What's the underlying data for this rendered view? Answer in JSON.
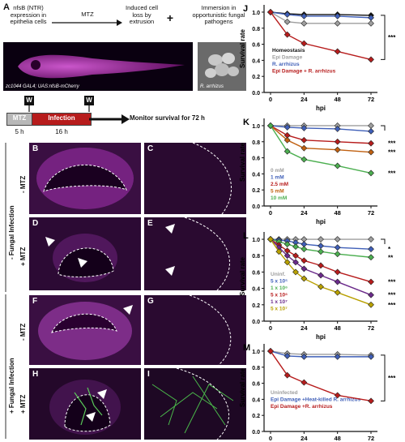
{
  "panel_a": {
    "letter": "A",
    "expression_text": "nfsB (NTR) expression in epithelia cells",
    "mtz": "MTZ",
    "induced_text": "Induced cell loss by extrusion",
    "plus": "+",
    "immersion_text": "Immersion in opportunistic fungal pathogens",
    "fish_caption": "zc1044 GAL4; UAS:nfsB-mCherry",
    "fungus_caption": "R. arrhizus",
    "timeline_w1": "W",
    "timeline_w2": "W",
    "timeline_mtz": "MTZ",
    "timeline_infection": "Infection",
    "timeline_monitor": "Monitor survival for 72 h",
    "timeline_5h": "5 h",
    "timeline_16h": "16 h"
  },
  "micro_panels": {
    "letters": [
      "B",
      "C",
      "D",
      "E",
      "F",
      "G",
      "H",
      "I"
    ],
    "group_top": "- Fungal Infection",
    "group_bottom": "+ Fungal Infection",
    "row_labels": [
      "- MTZ",
      "+ MTZ",
      "- MTZ",
      "+ MTZ"
    ]
  },
  "colors": {
    "magenta": "#cc33cc",
    "grey": "#9e9e9e",
    "blue": "#3f5fb8",
    "dark": "#111111",
    "red": "#b71c1c",
    "green": "#4caf50",
    "orange": "#c06010",
    "olive": "#b8a000"
  },
  "chart_data": [
    {
      "letter": "J",
      "type": "line",
      "xlabel": "hpi",
      "ylabel": "Survival rate",
      "x": [
        0,
        12,
        24,
        48,
        72
      ],
      "xticks": [
        0,
        24,
        48,
        72
      ],
      "yticks": [
        0,
        0.2,
        0.4,
        0.6,
        0.8,
        1.0
      ],
      "ylim": [
        0,
        1.05
      ],
      "sig": [
        "***"
      ],
      "series": [
        {
          "name": "Homeostasis",
          "color": "#111111",
          "values": [
            1.0,
            0.98,
            0.97,
            0.97,
            0.96
          ]
        },
        {
          "name": "Epi Damage",
          "color": "#9e9e9e",
          "values": [
            1.0,
            0.88,
            0.86,
            0.86,
            0.86
          ]
        },
        {
          "name": "R. arrhizus",
          "color": "#3f5fb8",
          "values": [
            1.0,
            0.97,
            0.95,
            0.95,
            0.93
          ]
        },
        {
          "name": "Epi Damage + R. arrhizus",
          "color": "#b71c1c",
          "values": [
            1.0,
            0.72,
            0.61,
            0.51,
            0.41
          ]
        }
      ]
    },
    {
      "letter": "K",
      "type": "line",
      "xlabel": "hpi",
      "ylabel": "Survival rate",
      "x": [
        0,
        12,
        24,
        48,
        72
      ],
      "xticks": [
        0,
        24,
        48,
        72
      ],
      "yticks": [
        0,
        0.2,
        0.4,
        0.6,
        0.8,
        1.0
      ],
      "ylim": [
        0,
        1.05
      ],
      "sig": [
        "***",
        "***",
        "***"
      ],
      "series": [
        {
          "name": "0 mM",
          "color": "#9e9e9e",
          "values": [
            1.0,
            1.0,
            1.0,
            1.0,
            1.0
          ]
        },
        {
          "name": "1 mM",
          "color": "#3f5fb8",
          "values": [
            1.0,
            0.98,
            0.97,
            0.96,
            0.93
          ]
        },
        {
          "name": "2.5 mM",
          "color": "#b71c1c",
          "values": [
            1.0,
            0.88,
            0.82,
            0.8,
            0.78
          ]
        },
        {
          "name": "5 mM",
          "color": "#c06010",
          "values": [
            1.0,
            0.82,
            0.72,
            0.7,
            0.67
          ]
        },
        {
          "name": "10 mM",
          "color": "#4caf50",
          "values": [
            1.0,
            0.68,
            0.58,
            0.5,
            0.41
          ]
        }
      ]
    },
    {
      "letter": "L",
      "type": "line",
      "xlabel": "hpi",
      "ylabel": "Survival rate",
      "x": [
        0,
        6,
        12,
        18,
        24,
        36,
        48,
        72
      ],
      "xticks": [
        0,
        24,
        48,
        72
      ],
      "yticks": [
        0,
        0.2,
        0.4,
        0.6,
        0.8,
        1.0
      ],
      "ylim": [
        0,
        1.05
      ],
      "sig": [
        "*",
        "**",
        "***",
        "***",
        "***"
      ],
      "series": [
        {
          "name": "Uninf.",
          "color": "#9e9e9e",
          "values": [
            1.0,
            1.0,
            1.0,
            1.0,
            1.0,
            1.0,
            1.0,
            1.0
          ]
        },
        {
          "name": "5 x 10⁵",
          "color": "#3f5fb8",
          "values": [
            1.0,
            0.99,
            0.98,
            0.96,
            0.94,
            0.92,
            0.9,
            0.88
          ]
        },
        {
          "name": "1 x 10⁶",
          "color": "#4caf50",
          "values": [
            1.0,
            0.97,
            0.94,
            0.91,
            0.88,
            0.85,
            0.82,
            0.78
          ]
        },
        {
          "name": "5 x 10⁶",
          "color": "#b71c1c",
          "values": [
            1.0,
            0.93,
            0.86,
            0.8,
            0.74,
            0.68,
            0.6,
            0.48
          ]
        },
        {
          "name": "1 x 10⁷",
          "color": "#6a2a8a",
          "values": [
            1.0,
            0.9,
            0.8,
            0.72,
            0.64,
            0.56,
            0.48,
            0.32
          ]
        },
        {
          "name": "5 x 10⁷",
          "color": "#b8a000",
          "values": [
            1.0,
            0.85,
            0.72,
            0.6,
            0.52,
            0.42,
            0.35,
            0.2
          ]
        }
      ]
    },
    {
      "letter": "M",
      "type": "line",
      "xlabel": "hpi",
      "ylabel": "Survival rate",
      "x": [
        0,
        12,
        24,
        48,
        72
      ],
      "xticks": [
        0,
        24,
        48,
        72
      ],
      "yticks": [
        0,
        0.2,
        0.4,
        0.6,
        0.8,
        1.0
      ],
      "ylim": [
        0,
        1.05
      ],
      "sig": [
        "***"
      ],
      "series": [
        {
          "name": "Uninfected",
          "color": "#9e9e9e",
          "values": [
            1.0,
            0.97,
            0.96,
            0.96,
            0.95
          ]
        },
        {
          "name": "Epi Damage +Heat-killed R. arrhizus",
          "color": "#3f5fb8",
          "values": [
            1.0,
            0.94,
            0.93,
            0.93,
            0.93
          ]
        },
        {
          "name": "Epi Damage +R. arrhizus",
          "color": "#b71c1c",
          "values": [
            1.0,
            0.7,
            0.61,
            0.45,
            0.38
          ]
        }
      ]
    }
  ]
}
